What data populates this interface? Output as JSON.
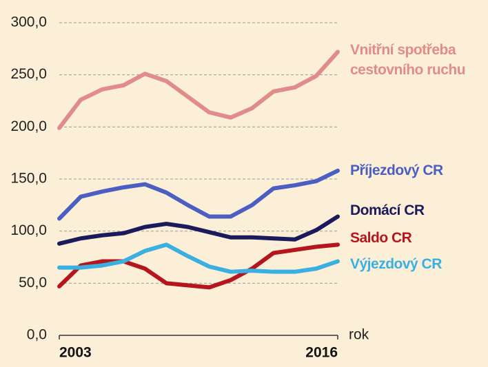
{
  "chart_data": {
    "type": "line",
    "x": [
      2003,
      2004,
      2005,
      2006,
      2007,
      2008,
      2009,
      2010,
      2011,
      2012,
      2013,
      2014,
      2015,
      2016
    ],
    "xlim": [
      2003,
      2016
    ],
    "xticks": [
      2003,
      2016
    ],
    "xlabel": "rok",
    "ylim": [
      0,
      300
    ],
    "yticks": [
      {
        "value": 0,
        "label": "0,0"
      },
      {
        "value": 50,
        "label": "50,0"
      },
      {
        "value": 100,
        "label": "100,0"
      },
      {
        "value": 150,
        "label": "150,0"
      },
      {
        "value": 200,
        "label": "200,0"
      },
      {
        "value": 250,
        "label": "250,0"
      },
      {
        "value": 300,
        "label": "300,0"
      }
    ],
    "grid": true,
    "series": [
      {
        "name": "Vnitřní spotřeba cestovního ruchu",
        "color": "#e08c88",
        "values": [
          199,
          226,
          236,
          240,
          251,
          244,
          229,
          214,
          209,
          218,
          234,
          238,
          249,
          272
        ]
      },
      {
        "name": "Příjezdový CR",
        "color": "#4a5fc1",
        "values": [
          112,
          133,
          138,
          142,
          145,
          137,
          125,
          114,
          114,
          125,
          141,
          144,
          148,
          158
        ]
      },
      {
        "name": "Domácí CR",
        "color": "#1b1a5c",
        "values": [
          88,
          93,
          96,
          98,
          104,
          107,
          104,
          99,
          94,
          94,
          93,
          92,
          101,
          114
        ]
      },
      {
        "name": "Saldo CR",
        "color": "#b5161d",
        "values": [
          47,
          67,
          71,
          71,
          64,
          50,
          48,
          46,
          53,
          64,
          79,
          82,
          85,
          87
        ]
      },
      {
        "name": "Výjezdový CR",
        "color": "#3ab0e2",
        "values": [
          65,
          65,
          67,
          71,
          81,
          87,
          76,
          66,
          61,
          62,
          61,
          61,
          64,
          71
        ]
      }
    ]
  }
}
